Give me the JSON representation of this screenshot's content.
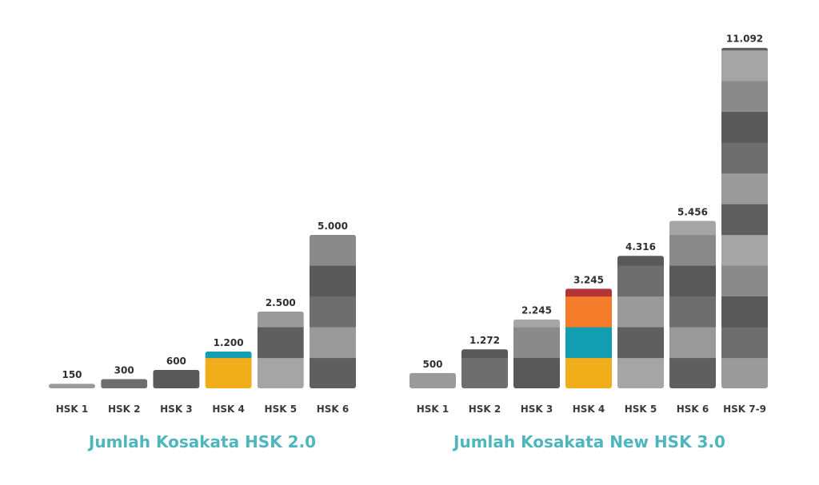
{
  "colors": {
    "title": "#4fb6bb",
    "label_text": "#2f2f2f",
    "segment_palette": [
      "#9a9a9a",
      "#6e6e6e",
      "#595959",
      "#8a8a8a",
      "#a5a5a5",
      "#5f5f5f"
    ],
    "hsk4_segments": [
      "#f2ad1b",
      "#119eb3",
      "#f47b2a",
      "#b4333b"
    ]
  },
  "chart_data": [
    {
      "type": "bar",
      "title": "Jumlah Kosakata HSK 2.0",
      "xlabel": "",
      "ylabel": "",
      "ylim": [
        0,
        11600
      ],
      "grid": false,
      "categories": [
        "HSK 1",
        "HSK 2",
        "HSK 3",
        "HSK 4",
        "HSK 5",
        "HSK 6"
      ],
      "values": [
        150,
        300,
        600,
        1200,
        2500,
        5000
      ],
      "value_labels": [
        "150",
        "300",
        "600",
        "1.200",
        "2.500",
        "5.000"
      ],
      "highlight_category": "HSK 4"
    },
    {
      "type": "bar",
      "title": "Jumlah Kosakata New HSK 3.0",
      "xlabel": "",
      "ylabel": "",
      "ylim": [
        0,
        11600
      ],
      "grid": false,
      "categories": [
        "HSK 1",
        "HSK 2",
        "HSK 3",
        "HSK 4",
        "HSK 5",
        "HSK 6",
        "HSK 7-9"
      ],
      "values": [
        500,
        1272,
        2245,
        3245,
        4316,
        5456,
        11092
      ],
      "value_labels": [
        "500",
        "1.272",
        "2.245",
        "3.245",
        "4.316",
        "5.456",
        "11.092"
      ],
      "highlight_category": "HSK 4"
    }
  ]
}
